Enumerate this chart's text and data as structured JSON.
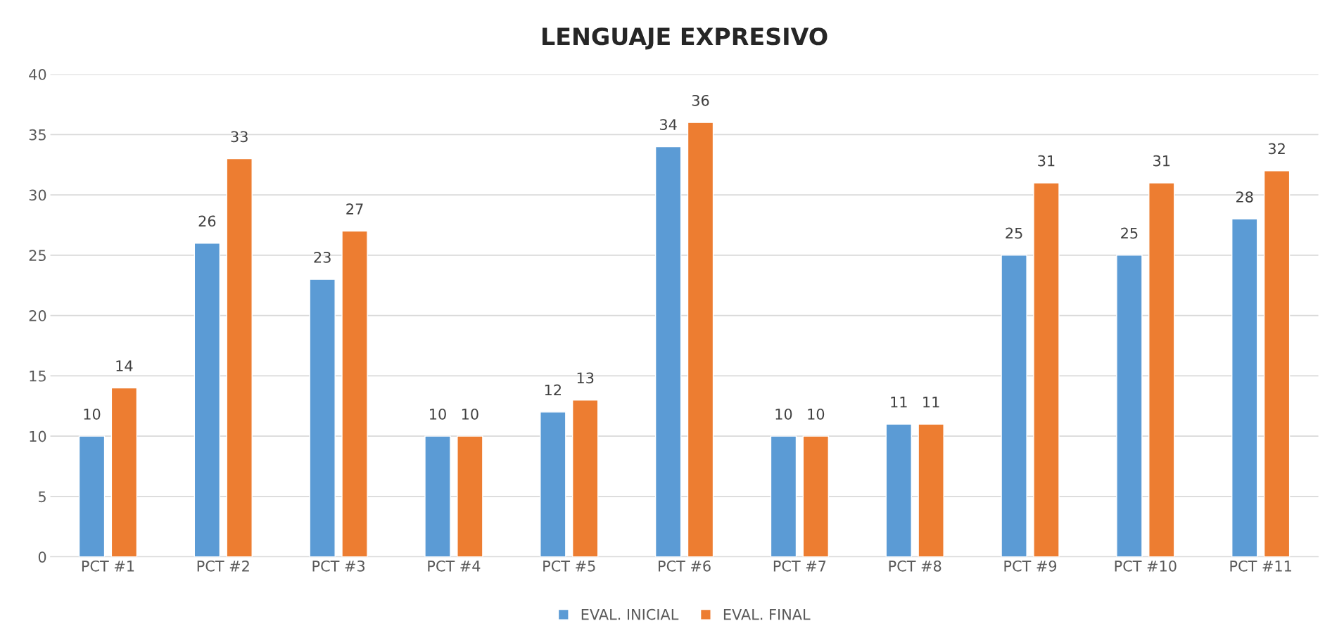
{
  "chart_data": {
    "type": "bar",
    "title": "LENGUAJE EXPRESIVO",
    "categories": [
      "PCT #1",
      "PCT #2",
      "PCT #3",
      "PCT #4",
      "PCT #5",
      "PCT #6",
      "PCT #7",
      "PCT #8",
      "PCT #9",
      "PCT #10",
      "PCT #11"
    ],
    "series": [
      {
        "name": "EVAL. INICIAL",
        "color": "#5b9bd5",
        "values": [
          10,
          26,
          23,
          10,
          12,
          34,
          10,
          11,
          25,
          25,
          28
        ]
      },
      {
        "name": "EVAL. FINAL",
        "color": "#ed7d31",
        "values": [
          14,
          33,
          27,
          10,
          13,
          36,
          10,
          11,
          31,
          31,
          32
        ]
      }
    ],
    "ylim": [
      0,
      40
    ],
    "yticks": [
      0,
      5,
      10,
      15,
      20,
      25,
      30,
      35,
      40
    ],
    "grid": "y",
    "legend": "bottom",
    "data_labels": true
  }
}
